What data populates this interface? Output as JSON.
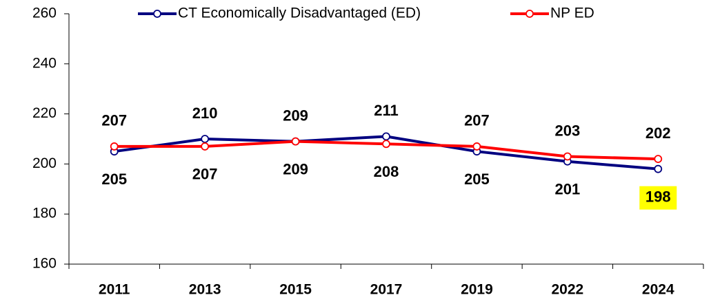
{
  "chart_data": {
    "type": "line",
    "categories": [
      "2011",
      "2013",
      "2015",
      "2017",
      "2019",
      "2022",
      "2024"
    ],
    "series": [
      {
        "name": "CT Economically Disadvantaged (ED)",
        "color": "#000080",
        "values": [
          205,
          210,
          209,
          211,
          205,
          201,
          198
        ]
      },
      {
        "name": "NP ED",
        "color": "#ff0000",
        "values": [
          207,
          207,
          209,
          208,
          207,
          203,
          202
        ]
      }
    ],
    "ylim": [
      160,
      260
    ],
    "yticks": [
      160,
      180,
      200,
      220,
      240,
      260
    ],
    "grid": false,
    "legend": "top",
    "highlight": {
      "series": 0,
      "index": 6,
      "color": "#ffff00"
    }
  }
}
